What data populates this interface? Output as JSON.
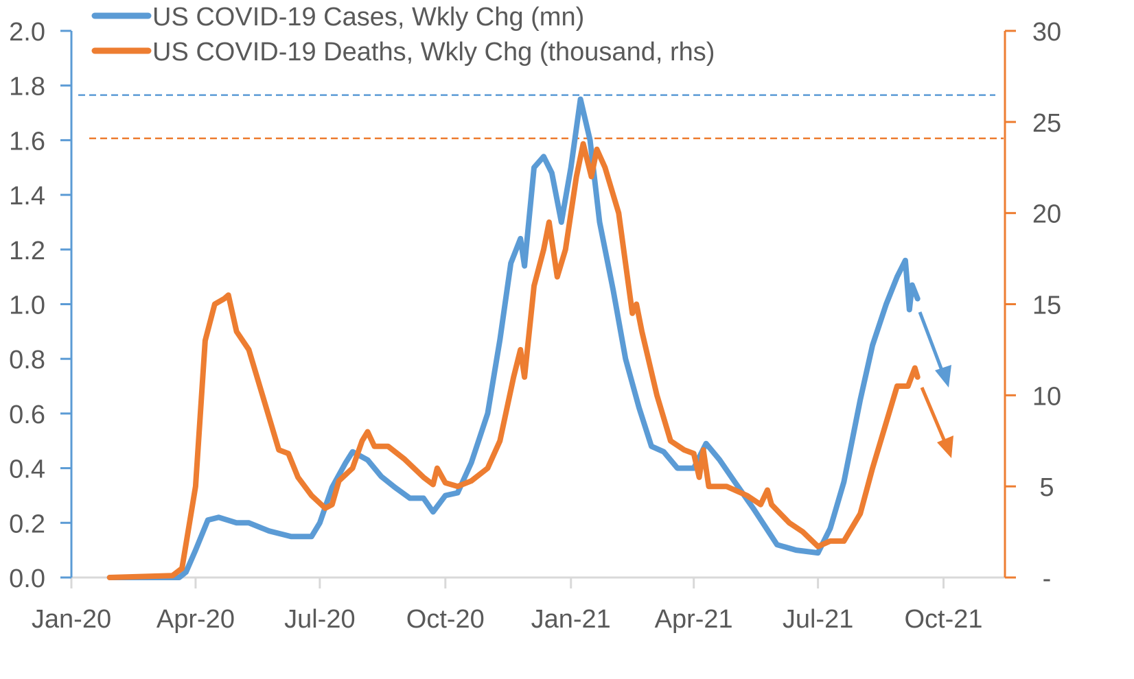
{
  "chart_data": {
    "type": "line",
    "title": "",
    "xlabel": "",
    "ylabel": "",
    "ylabel_right": "",
    "x_ticks": [
      "Jan-20",
      "Apr-20",
      "Jul-20",
      "Oct-20",
      "Jan-21",
      "Apr-21",
      "Jul-21",
      "Oct-21"
    ],
    "x_tick_dates": [
      "2020-01-01",
      "2020-04-01",
      "2020-07-01",
      "2020-10-01",
      "2021-01-01",
      "2021-04-01",
      "2021-07-01",
      "2021-10-01"
    ],
    "xlim": [
      "2020-01-01",
      "2021-11-15"
    ],
    "ylim_left": [
      0,
      2.0
    ],
    "y_ticks_left": [
      "0.0",
      "0.2",
      "0.4",
      "0.6",
      "0.8",
      "1.0",
      "1.2",
      "1.4",
      "1.6",
      "1.8",
      "2.0"
    ],
    "ylim_right": [
      0,
      30
    ],
    "y_ticks_right": [
      "-",
      "5",
      "10",
      "15",
      "20",
      "25",
      "30"
    ],
    "grid": false,
    "legend_position": "top-left",
    "colors": {
      "cases": "#5b9bd5",
      "deaths": "#ed7d31",
      "axis_grey": "#d9d9d9",
      "text": "#595959"
    },
    "reference_lines": [
      {
        "series": "cases",
        "axis": "left",
        "value": 1.765,
        "style": "dashed"
      },
      {
        "series": "deaths",
        "axis": "right",
        "value": 24.1,
        "style": "dashed"
      }
    ],
    "annotations": [
      {
        "type": "arrow",
        "series": "cases",
        "direction": "down"
      },
      {
        "type": "arrow",
        "series": "deaths",
        "direction": "down"
      }
    ],
    "series": [
      {
        "name": "US COVID-19 Cases, Wkly Chg (mn)",
        "key": "cases",
        "axis": "left",
        "points": [
          [
            "2020-01-29",
            0
          ],
          [
            "2020-03-20",
            0.0
          ],
          [
            "2020-03-25",
            0.02
          ],
          [
            "2020-04-01",
            0.1
          ],
          [
            "2020-04-10",
            0.21
          ],
          [
            "2020-04-18",
            0.22
          ],
          [
            "2020-05-01",
            0.2
          ],
          [
            "2020-05-10",
            0.2
          ],
          [
            "2020-05-25",
            0.17
          ],
          [
            "2020-06-10",
            0.15
          ],
          [
            "2020-06-25",
            0.15
          ],
          [
            "2020-07-01",
            0.2
          ],
          [
            "2020-07-10",
            0.33
          ],
          [
            "2020-07-20",
            0.42
          ],
          [
            "2020-07-25",
            0.46
          ],
          [
            "2020-08-05",
            0.43
          ],
          [
            "2020-08-15",
            0.37
          ],
          [
            "2020-08-25",
            0.33
          ],
          [
            "2020-09-05",
            0.29
          ],
          [
            "2020-09-15",
            0.29
          ],
          [
            "2020-09-22",
            0.24
          ],
          [
            "2020-10-01",
            0.3
          ],
          [
            "2020-10-10",
            0.31
          ],
          [
            "2020-10-20",
            0.42
          ],
          [
            "2020-11-01",
            0.6
          ],
          [
            "2020-11-10",
            0.87
          ],
          [
            "2020-11-18",
            1.15
          ],
          [
            "2020-11-25",
            1.24
          ],
          [
            "2020-11-28",
            1.14
          ],
          [
            "2020-12-05",
            1.5
          ],
          [
            "2020-12-12",
            1.54
          ],
          [
            "2020-12-18",
            1.48
          ],
          [
            "2020-12-25",
            1.3
          ],
          [
            "2021-01-01",
            1.5
          ],
          [
            "2021-01-08",
            1.75
          ],
          [
            "2021-01-15",
            1.6
          ],
          [
            "2021-01-22",
            1.3
          ],
          [
            "2021-02-01",
            1.05
          ],
          [
            "2021-02-10",
            0.8
          ],
          [
            "2021-02-20",
            0.62
          ],
          [
            "2021-03-01",
            0.48
          ],
          [
            "2021-03-10",
            0.46
          ],
          [
            "2021-03-20",
            0.4
          ],
          [
            "2021-04-01",
            0.4
          ],
          [
            "2021-04-10",
            0.49
          ],
          [
            "2021-04-20",
            0.43
          ],
          [
            "2021-05-01",
            0.35
          ],
          [
            "2021-05-15",
            0.25
          ],
          [
            "2021-06-01",
            0.12
          ],
          [
            "2021-06-15",
            0.1
          ],
          [
            "2021-07-01",
            0.09
          ],
          [
            "2021-07-10",
            0.18
          ],
          [
            "2021-07-20",
            0.35
          ],
          [
            "2021-08-01",
            0.65
          ],
          [
            "2021-08-10",
            0.85
          ],
          [
            "2021-08-20",
            1.0
          ],
          [
            "2021-08-28",
            1.1
          ],
          [
            "2021-09-03",
            1.16
          ],
          [
            "2021-09-06",
            0.98
          ],
          [
            "2021-09-08",
            1.07
          ],
          [
            "2021-09-12",
            1.02
          ]
        ]
      },
      {
        "name": "US COVID-19 Deaths, Wkly Chg (thousand, rhs)",
        "key": "deaths",
        "axis": "right",
        "points": [
          [
            "2020-01-29",
            0
          ],
          [
            "2020-03-15",
            0.1
          ],
          [
            "2020-03-22",
            0.5
          ],
          [
            "2020-04-01",
            5
          ],
          [
            "2020-04-08",
            13
          ],
          [
            "2020-04-15",
            15
          ],
          [
            "2020-04-22",
            15.3
          ],
          [
            "2020-04-25",
            15.5
          ],
          [
            "2020-05-01",
            13.5
          ],
          [
            "2020-05-10",
            12.5
          ],
          [
            "2020-05-20",
            10
          ],
          [
            "2020-06-01",
            7
          ],
          [
            "2020-06-08",
            6.8
          ],
          [
            "2020-06-15",
            5.5
          ],
          [
            "2020-06-25",
            4.5
          ],
          [
            "2020-07-05",
            3.8
          ],
          [
            "2020-07-10",
            4
          ],
          [
            "2020-07-15",
            5.3
          ],
          [
            "2020-07-25",
            6
          ],
          [
            "2020-08-01",
            7.5
          ],
          [
            "2020-08-05",
            8
          ],
          [
            "2020-08-10",
            7.2
          ],
          [
            "2020-08-20",
            7.2
          ],
          [
            "2020-09-01",
            6.5
          ],
          [
            "2020-09-15",
            5.5
          ],
          [
            "2020-09-22",
            5.1
          ],
          [
            "2020-09-25",
            6
          ],
          [
            "2020-10-01",
            5.2
          ],
          [
            "2020-10-10",
            5
          ],
          [
            "2020-10-20",
            5.3
          ],
          [
            "2020-11-01",
            6
          ],
          [
            "2020-11-10",
            7.5
          ],
          [
            "2020-11-20",
            11
          ],
          [
            "2020-11-25",
            12.5
          ],
          [
            "2020-11-28",
            11
          ],
          [
            "2020-12-05",
            16
          ],
          [
            "2020-12-12",
            18
          ],
          [
            "2020-12-16",
            19.5
          ],
          [
            "2020-12-22",
            16.5
          ],
          [
            "2020-12-28",
            18
          ],
          [
            "2021-01-05",
            22
          ],
          [
            "2021-01-10",
            23.8
          ],
          [
            "2021-01-16",
            22
          ],
          [
            "2021-01-20",
            23.5
          ],
          [
            "2021-01-26",
            22.5
          ],
          [
            "2021-02-05",
            20
          ],
          [
            "2021-02-15",
            14.5
          ],
          [
            "2021-02-18",
            15
          ],
          [
            "2021-02-22",
            13.5
          ],
          [
            "2021-03-05",
            10
          ],
          [
            "2021-03-15",
            7.5
          ],
          [
            "2021-03-25",
            7
          ],
          [
            "2021-04-01",
            6.8
          ],
          [
            "2021-04-05",
            5.5
          ],
          [
            "2021-04-08",
            7
          ],
          [
            "2021-04-12",
            5
          ],
          [
            "2021-04-25",
            5
          ],
          [
            "2021-05-10",
            4.5
          ],
          [
            "2021-05-20",
            4
          ],
          [
            "2021-05-25",
            4.8
          ],
          [
            "2021-05-28",
            4
          ],
          [
            "2021-06-10",
            3
          ],
          [
            "2021-06-20",
            2.5
          ],
          [
            "2021-07-01",
            1.7
          ],
          [
            "2021-07-10",
            2
          ],
          [
            "2021-07-20",
            2
          ],
          [
            "2021-08-01",
            3.5
          ],
          [
            "2021-08-10",
            6
          ],
          [
            "2021-08-20",
            8.5
          ],
          [
            "2021-08-28",
            10.5
          ],
          [
            "2021-09-05",
            10.5
          ],
          [
            "2021-09-10",
            11.5
          ],
          [
            "2021-09-12",
            11
          ]
        ]
      }
    ]
  }
}
